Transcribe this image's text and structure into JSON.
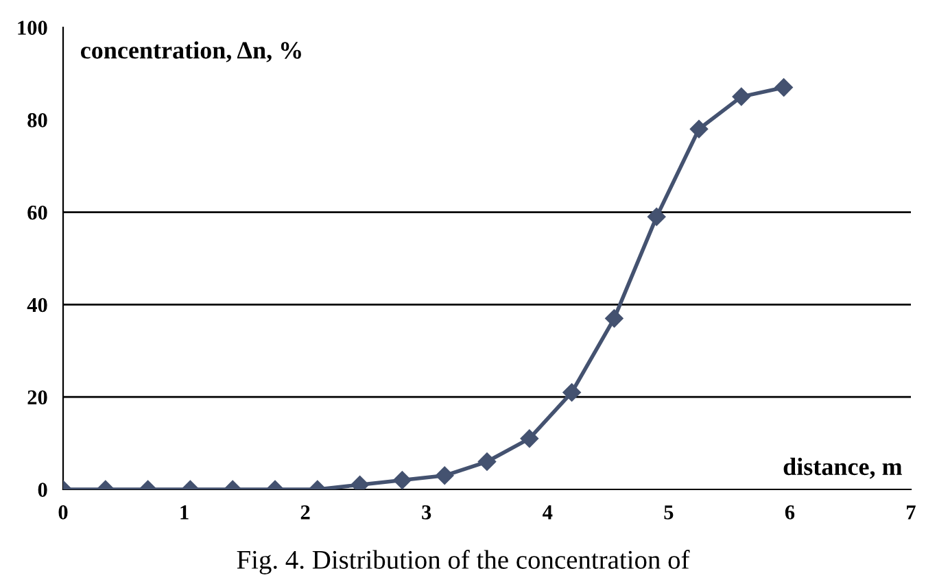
{
  "chart_data": {
    "type": "line",
    "xlabel": "distance, m",
    "ylabel": "concentration, Δn, %",
    "x": [
      0,
      0.35,
      0.7,
      1.05,
      1.4,
      1.75,
      2.1,
      2.45,
      2.8,
      3.15,
      3.5,
      3.85,
      4.2,
      4.55,
      4.9,
      5.25,
      5.6,
      5.95
    ],
    "series": [
      {
        "color": "#445270",
        "values": [
          0,
          0,
          0,
          0,
          0,
          0,
          0,
          1,
          2,
          3,
          6,
          11,
          21,
          37,
          59,
          78,
          85,
          87
        ]
      }
    ],
    "marker": "diamond",
    "line_style": "solid",
    "xlim": [
      0,
      7
    ],
    "xticks": [
      0,
      1,
      2,
      3,
      4,
      5,
      6,
      7
    ],
    "ylim": [
      0,
      100
    ],
    "yticks": [
      0,
      20,
      40,
      60,
      80,
      100
    ],
    "ref_lines": [
      {
        "axis": "y",
        "value": 20,
        "label": null
      },
      {
        "axis": "y",
        "value": 40,
        "label": null
      },
      {
        "axis": "y",
        "value": 60,
        "label": null
      }
    ],
    "annotations": [
      "Fig. 4. Distribution of the concentration of"
    ]
  }
}
